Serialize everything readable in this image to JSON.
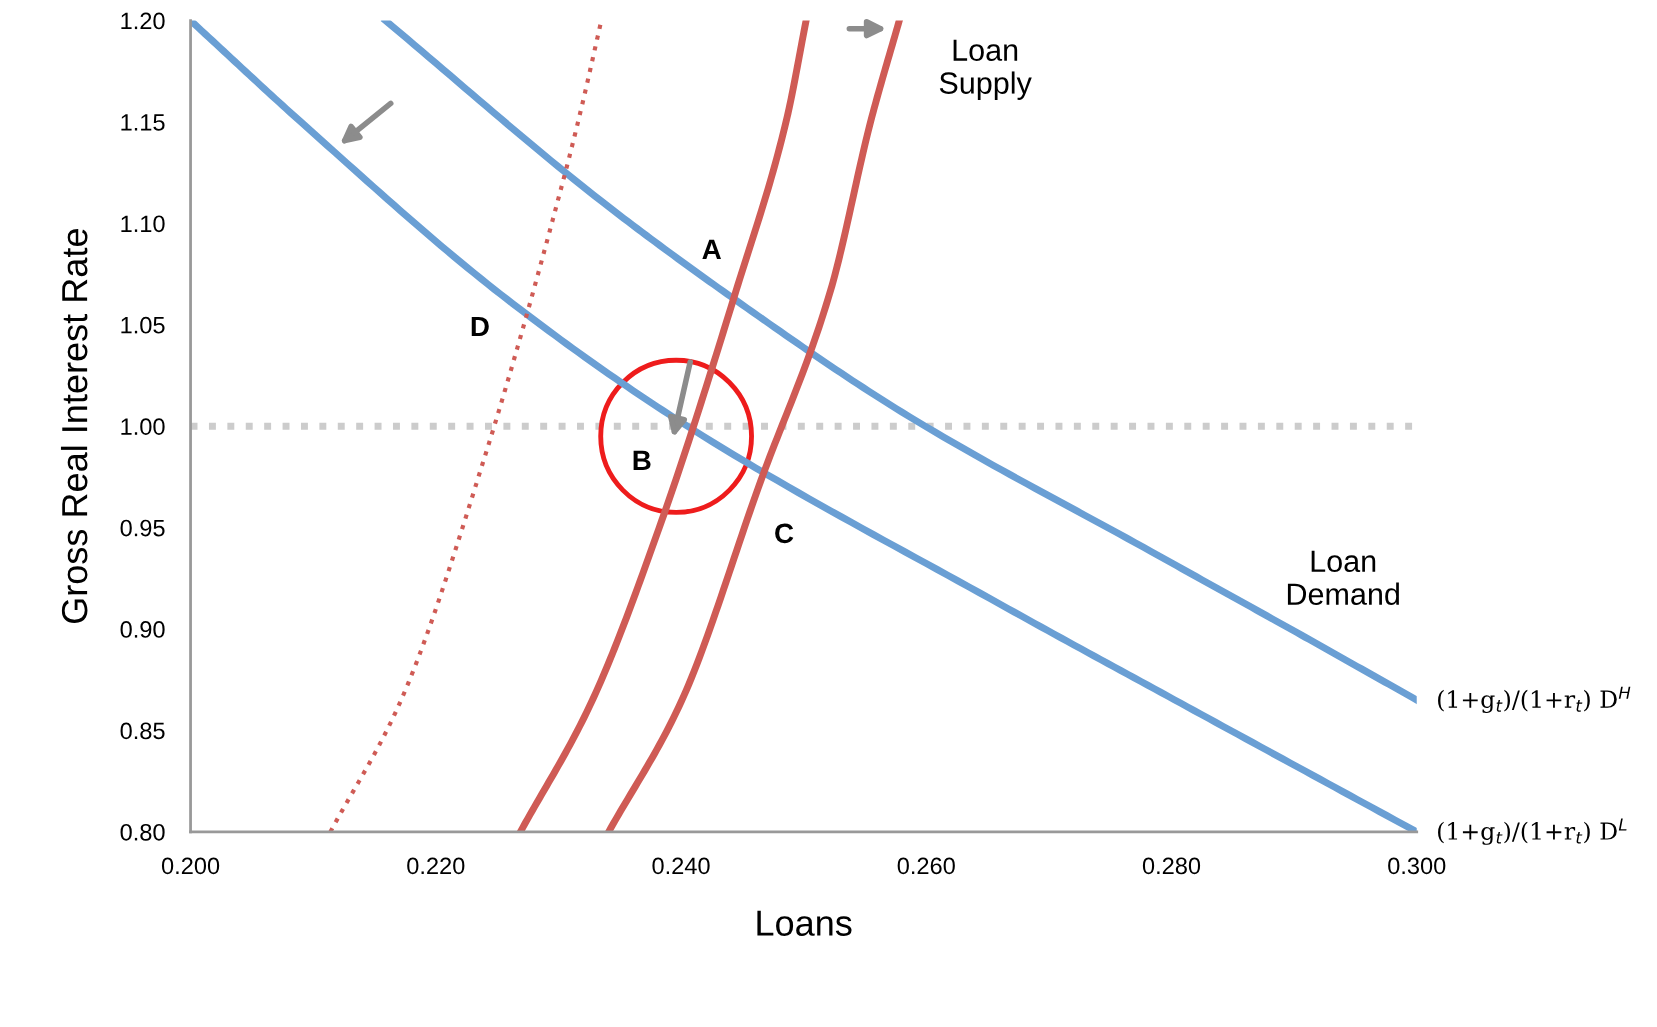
{
  "chart_data": {
    "type": "line",
    "xlabel": "Loans",
    "ylabel": "Gross Real Interest Rate",
    "xlim": [
      0.2,
      0.3
    ],
    "ylim": [
      0.8,
      1.2
    ],
    "xticks": [
      {
        "value": 0.2,
        "label": "0.200"
      },
      {
        "value": 0.22,
        "label": "0.220"
      },
      {
        "value": 0.24,
        "label": "0.240"
      },
      {
        "value": 0.26,
        "label": "0.260"
      },
      {
        "value": 0.28,
        "label": "0.280"
      },
      {
        "value": 0.3,
        "label": "0.300"
      }
    ],
    "yticks": [
      {
        "value": 0.8,
        "label": "0.80"
      },
      {
        "value": 0.85,
        "label": "0.85"
      },
      {
        "value": 0.9,
        "label": "0.90"
      },
      {
        "value": 0.95,
        "label": "0.95"
      },
      {
        "value": 1.0,
        "label": "1.00"
      },
      {
        "value": 1.05,
        "label": "1.05"
      },
      {
        "value": 1.1,
        "label": "1.10"
      },
      {
        "value": 1.15,
        "label": "1.15"
      },
      {
        "value": 1.2,
        "label": "1.20"
      }
    ],
    "grid": false,
    "legend": false,
    "marker": "none",
    "series": [
      {
        "name": "(1+g$_{t}$)/(1+r$_{t}$) D$^{H}$",
        "color": "#6a9fd4",
        "line_style": "solid",
        "x": [
          0.2159,
          0.2335,
          0.2445,
          0.258,
          0.2784,
          0.2906,
          0.3
        ],
        "values": [
          1.2,
          1.111,
          1.062,
          1.007,
          0.938,
          0.897,
          0.865
        ]
      },
      {
        "name": "(1+g$_{t}$)/(1+r$_{t}$) D$^{L}$",
        "color": "#6a9fd4",
        "line_style": "solid",
        "x": [
          0.2,
          0.209,
          0.2253,
          0.24,
          0.2661,
          0.2824,
          0.3
        ],
        "values": [
          1.2,
          1.15,
          1.065,
          1.002,
          0.912,
          0.858,
          0.8
        ]
      },
      {
        "color": "#cf5b55",
        "line_style": "solid",
        "x": [
          0.2269,
          0.2327,
          0.2384,
          0.2445,
          0.2486,
          0.2502
        ],
        "values": [
          0.8,
          0.864,
          0.953,
          1.067,
          1.151,
          1.2
        ]
      },
      {
        "color": "#cf5b55",
        "line_style": "solid",
        "x": [
          0.2341,
          0.24,
          0.2465,
          0.2522,
          0.2555,
          0.2578
        ],
        "values": [
          0.8,
          0.864,
          0.973,
          1.067,
          1.151,
          1.2
        ]
      },
      {
        "color": "#cf5b55",
        "line_style": "dotted",
        "x": [
          0.2114,
          0.2171,
          0.2241,
          0.2306,
          0.2318,
          0.2335
        ],
        "values": [
          0.8,
          0.864,
          0.987,
          1.126,
          1.155,
          1.2
        ]
      }
    ],
    "ref_lines": [
      {
        "axis": "y",
        "value": 1.0,
        "color": "#cccccc",
        "line_style": "dotted"
      }
    ],
    "annotations": [
      "A",
      "B",
      "C",
      "D",
      "Loan\nSupply",
      "Loan\nDemand"
    ]
  }
}
